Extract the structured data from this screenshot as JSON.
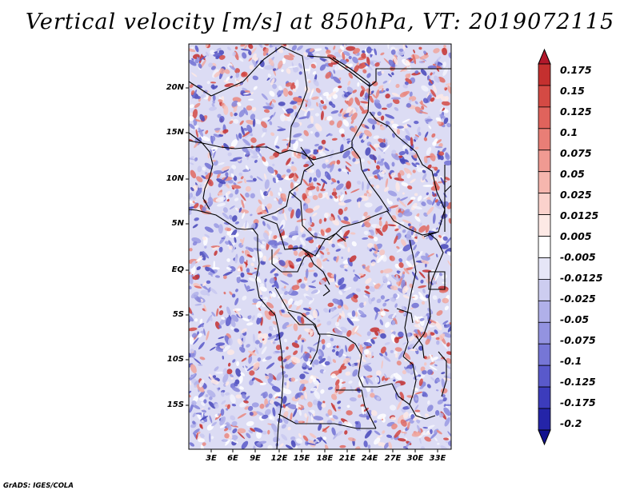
{
  "title": "Vertical velocity [m/s] at 850hPa, VT: 2019072115",
  "footer": "GrADS: IGES/COLA",
  "map": {
    "variable": "Vertical velocity",
    "units": "m/s",
    "level": "850hPa",
    "valid_time": "2019072115",
    "lat_labels": [
      "20N",
      "15N",
      "10N",
      "5N",
      "EQ",
      "5S",
      "10S",
      "15S"
    ],
    "lon_labels": [
      "3E",
      "6E",
      "9E",
      "12E",
      "15E",
      "18E",
      "21E",
      "24E",
      "27E",
      "30E",
      "33E"
    ]
  },
  "colorbar": {
    "labels": [
      "0.175",
      "0.15",
      "0.125",
      "0.1",
      "0.075",
      "0.05",
      "0.025",
      "0.0125",
      "0.005",
      "-0.005",
      "-0.0125",
      "-0.025",
      "-0.05",
      "-0.075",
      "-0.1",
      "-0.125",
      "-0.175",
      "-0.2"
    ],
    "colors": [
      "#b2182b",
      "#c4302f",
      "#d44a44",
      "#e0635c",
      "#e97e76",
      "#f09a92",
      "#f6b6ae",
      "#fbd2cc",
      "#fde9e5",
      "#ffffff",
      "#e6e6f7",
      "#cdcdf0",
      "#b0b0e9",
      "#9393e0",
      "#7676d6",
      "#5959cb",
      "#3c3cbc",
      "#2424a8",
      "#12128e"
    ]
  }
}
